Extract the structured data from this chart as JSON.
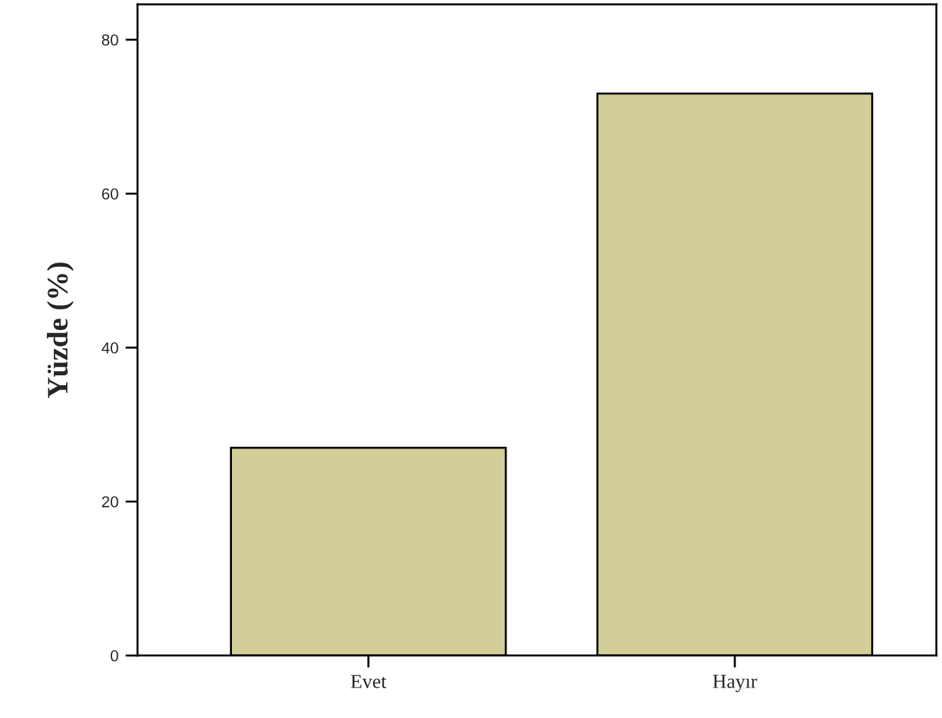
{
  "chart_data": {
    "type": "bar",
    "ylabel": "Yüzde (%)",
    "categories": [
      "Evet",
      "Hayır"
    ],
    "values": [
      27,
      73
    ],
    "color": "#d3cd98",
    "ylim": [
      0,
      84.6
    ],
    "yticks": [
      0,
      20,
      40,
      60,
      80
    ],
    "grid": false,
    "legend": false
  }
}
